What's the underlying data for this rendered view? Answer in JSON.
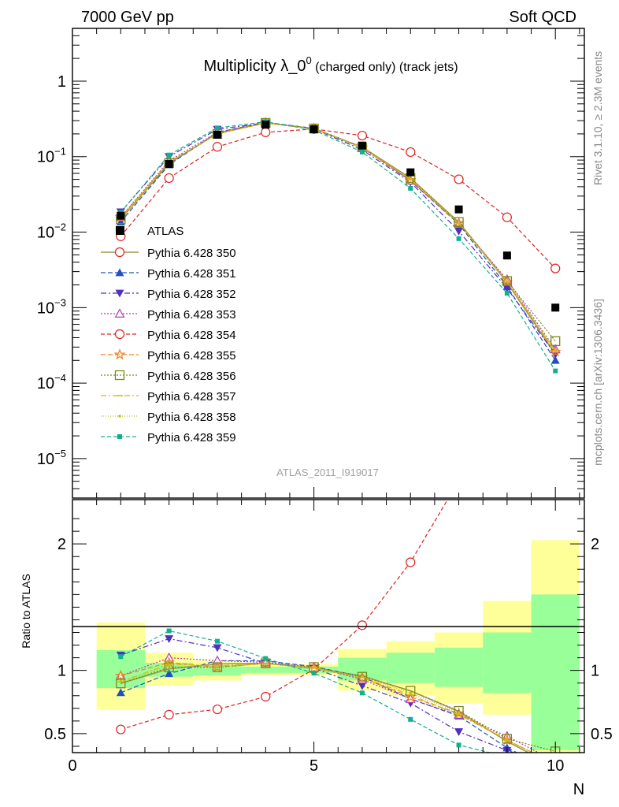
{
  "header": {
    "left": "7000 GeV pp",
    "right": "Soft QCD"
  },
  "title": {
    "main": "Multiplicity λ_0",
    "sup": "0",
    "small": " (charged only) (track jets)"
  },
  "side_labels": {
    "rivet": "Rivet 3.1.10, ≥ 2.3M events",
    "mcplots": "mcplots.cern.ch [arXiv:1306.3436]"
  },
  "analysis_label": "ATLAS_2011_I919017",
  "axes": {
    "xlabel": "N",
    "ratio_ylabel": "Ratio to ATLAS",
    "xlim": [
      0,
      10.6
    ],
    "top_ylim": [
      3e-06,
      5
    ],
    "ratio_ylim": [
      0.35,
      2.35
    ],
    "x_ticks": [
      "0",
      "5",
      "10"
    ],
    "top_y_ticks": [
      {
        "mantissa": "1",
        "exp": ""
      },
      {
        "mantissa": "10",
        "exp": "−1"
      },
      {
        "mantissa": "10",
        "exp": "−2"
      },
      {
        "mantissa": "10",
        "exp": "−3"
      },
      {
        "mantissa": "10",
        "exp": "−4"
      },
      {
        "mantissa": "10",
        "exp": "−5"
      }
    ],
    "ratio_y_ticks": [
      "0.5",
      "1",
      "2"
    ]
  },
  "chart_data": {
    "type": "scatter",
    "x": [
      1,
      2,
      3,
      4,
      5,
      6,
      7,
      8,
      9,
      10
    ],
    "data_series": {
      "name": "ATLAS",
      "values": [
        0.0165,
        0.08,
        0.195,
        0.265,
        0.23,
        0.14,
        0.062,
        0.02,
        0.0049,
        0.001
      ]
    },
    "bands": {
      "inner_lo": [
        0.86,
        0.95,
        0.96,
        0.98,
        0.98,
        0.92,
        0.9,
        0.87,
        0.82,
        0.37
      ],
      "inner_hi": [
        1.16,
        1.06,
        1.04,
        1.03,
        1.03,
        1.1,
        1.14,
        1.18,
        1.3,
        1.6
      ],
      "outer_lo": [
        0.69,
        0.88,
        0.92,
        0.96,
        0.96,
        0.84,
        0.8,
        0.74,
        0.65,
        0.3
      ],
      "outer_hi": [
        1.38,
        1.14,
        1.08,
        1.05,
        1.05,
        1.17,
        1.23,
        1.3,
        1.55,
        2.03
      ]
    },
    "series": [
      {
        "name": "Pythia 6.428 350",
        "color": "#a09850",
        "marker": "none",
        "dash": "",
        "width": 1.6,
        "values": [
          0.0148,
          0.081,
          0.205,
          0.28,
          0.234,
          0.134,
          0.052,
          0.0135,
          0.00215,
          0.00024
        ]
      },
      {
        "name": "Pythia 6.428 351",
        "color": "#1f50c8",
        "marker": "triangle-up",
        "dash": "6 3",
        "values": [
          0.0136,
          0.078,
          0.21,
          0.285,
          0.237,
          0.133,
          0.048,
          0.0128,
          0.0019,
          0.0002
        ]
      },
      {
        "name": "Pythia 6.428 352",
        "color": "#5030c0",
        "marker": "triangle-down",
        "dash": "7 3 2 3",
        "values": [
          0.0185,
          0.1,
          0.23,
          0.28,
          0.234,
          0.123,
          0.046,
          0.0103,
          0.0018,
          0.00024
        ]
      },
      {
        "name": "Pythia 6.428 353",
        "color": "#b040b0",
        "marker": "triangle-open",
        "dash": "2 2",
        "values": [
          0.0158,
          0.088,
          0.21,
          0.282,
          0.236,
          0.13,
          0.048,
          0.013,
          0.00235,
          0.00028
        ]
      },
      {
        "name": "Pythia 6.428 354",
        "color": "#e02020",
        "marker": "circle-open",
        "dash": "5 3",
        "values": [
          0.0088,
          0.052,
          0.135,
          0.21,
          0.232,
          0.19,
          0.115,
          0.05,
          0.0157,
          0.0033
        ]
      },
      {
        "name": "Pythia 6.428 355",
        "color": "#f08020",
        "marker": "star",
        "dash": "6 3",
        "values": [
          0.0158,
          0.085,
          0.2,
          0.28,
          0.234,
          0.132,
          0.049,
          0.0132,
          0.0022,
          0.00026
        ]
      },
      {
        "name": "Pythia 6.428 356",
        "color": "#7a8a18",
        "marker": "square-open",
        "dash": "2 2",
        "values": [
          0.0148,
          0.082,
          0.2,
          0.28,
          0.236,
          0.133,
          0.052,
          0.0136,
          0.00225,
          0.00036
        ]
      },
      {
        "name": "Pythia 6.428 357",
        "color": "#d8b800",
        "marker": "tick",
        "dash": "7 3 2 3",
        "values": [
          0.015,
          0.084,
          0.202,
          0.279,
          0.235,
          0.132,
          0.05,
          0.013,
          0.0022,
          0.00026
        ]
      },
      {
        "name": "Pythia 6.428 358",
        "color": "#c0c020",
        "marker": "dot",
        "dash": "1 2",
        "values": [
          0.0151,
          0.083,
          0.2,
          0.279,
          0.235,
          0.133,
          0.051,
          0.0133,
          0.0022,
          0.00027
        ]
      },
      {
        "name": "Pythia 6.428 359",
        "color": "#10b090",
        "marker": "square-filled",
        "dash": "5 3",
        "values": [
          0.0183,
          0.105,
          0.24,
          0.29,
          0.225,
          0.115,
          0.038,
          0.0082,
          0.00155,
          0.000145
        ]
      }
    ],
    "legend": {
      "placement": "left-middle"
    }
  }
}
